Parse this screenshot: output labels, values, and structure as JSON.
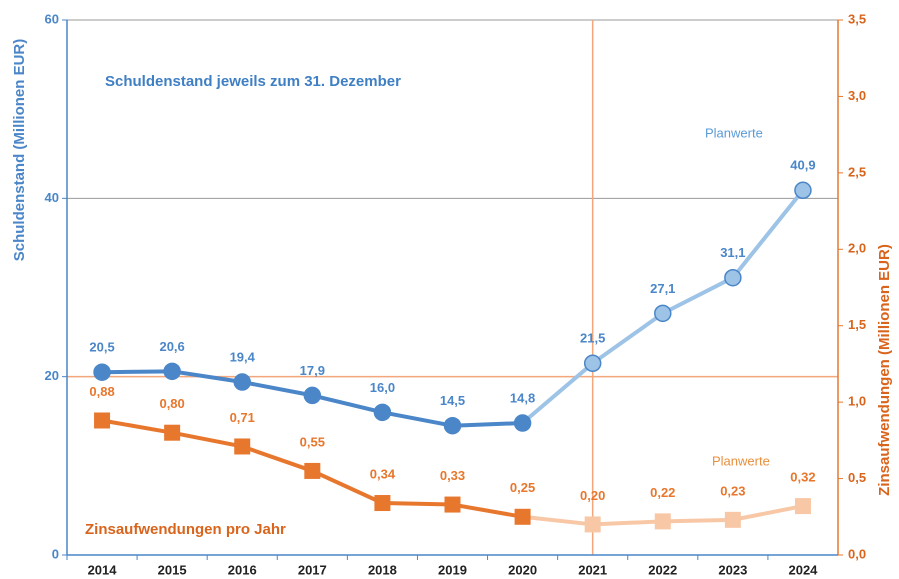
{
  "chart_data": {
    "type": "line",
    "y_label": "Schuldenstand (Millionen EUR)",
    "y2_label": "Zinsaufwendungen (Millionen EUR)",
    "annotations": [
      "Schuldenstand jeweils zum 31. Dezember",
      "Zinsaufwendungen pro Jahr",
      "Planwerte",
      "Planwerte"
    ],
    "categories": [
      "2014",
      "2015",
      "2016",
      "2017",
      "2018",
      "2019",
      "2020",
      "2021",
      "2022",
      "2023",
      "2024"
    ],
    "plan_from": "2021",
    "series": [
      {
        "name": "Schuldenstand",
        "color": "#4a86c8",
        "plan_color": "#9dc3e6",
        "marker": "circle",
        "values": [
          20.5,
          20.6,
          19.4,
          17.9,
          16.0,
          14.5,
          14.8,
          21.5,
          27.1,
          31.1,
          40.9
        ],
        "value_labels": [
          "20,5",
          "20,6",
          "19,4",
          "17,9",
          "16,0",
          "14,5",
          "14,8",
          "21,5",
          "27,1",
          "31,1",
          "40,9"
        ]
      },
      {
        "name": "Zinsaufwendungen",
        "color": "#e8772e",
        "plan_color": "#f8c8a6",
        "marker": "square",
        "axis": "y2",
        "values": [
          0.88,
          0.8,
          0.71,
          0.55,
          0.34,
          0.33,
          0.25,
          0.2,
          0.22,
          0.23,
          0.32
        ],
        "value_labels": [
          "0,88",
          "0,80",
          "0,71",
          "0,55",
          "0,34",
          "0,33",
          "0,25",
          "0,20",
          "0,22",
          "0,23",
          "0,32"
        ]
      }
    ],
    "ylim": [
      0,
      60
    ],
    "yticks": [
      0,
      20,
      40,
      60
    ],
    "y2lim": [
      0,
      3.5
    ],
    "y2ticks": [
      {
        "value": 0,
        "label": "0,0"
      },
      {
        "value": 0.5,
        "label": "0,5"
      },
      {
        "value": 1,
        "label": "1,0"
      },
      {
        "value": 1.5,
        "label": "1,5"
      },
      {
        "value": 2,
        "label": "2,0"
      },
      {
        "value": 2.5,
        "label": "2,5"
      },
      {
        "value": 3,
        "label": "3,0"
      },
      {
        "value": 3.5,
        "label": "3,5"
      }
    ],
    "grid": true,
    "reference_line": {
      "y": 20,
      "color": "#f4a77a"
    }
  }
}
